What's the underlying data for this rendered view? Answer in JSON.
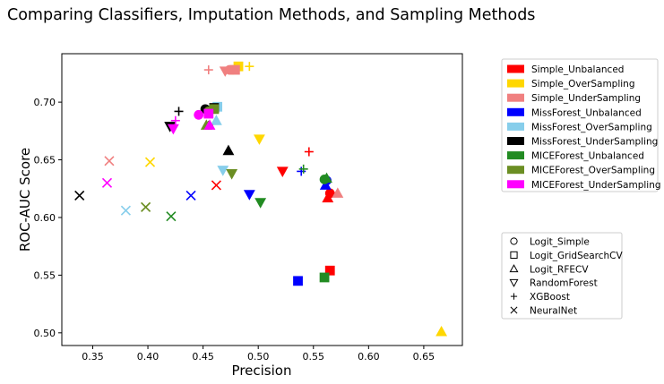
{
  "chart_data": {
    "type": "scatter",
    "title": "Comparing Classifiers, Imputation Methods, and Sampling Methods",
    "xlabel": "Precision",
    "ylabel": "ROC-AUC Score",
    "xlim": [
      0.322,
      0.685
    ],
    "ylim": [
      0.489,
      0.742
    ],
    "xticks": [
      0.35,
      0.4,
      0.45,
      0.5,
      0.55,
      0.6,
      0.65
    ],
    "xtick_labels": [
      "0.35",
      "0.40",
      "0.45",
      "0.50",
      "0.55",
      "0.60",
      "0.65"
    ],
    "yticks": [
      0.5,
      0.55,
      0.6,
      0.65,
      0.7
    ],
    "ytick_labels": [
      "0.50",
      "0.55",
      "0.60",
      "0.65",
      "0.70"
    ],
    "grid": false,
    "legend_placement": "right",
    "methods": [
      {
        "name": "Simple_Unbalanced",
        "color": "#ff0000"
      },
      {
        "name": "Simple_OverSampling",
        "color": "#ffd700"
      },
      {
        "name": "Simple_UnderSampling",
        "color": "#f08080"
      },
      {
        "name": "MissForest_Unbalanced",
        "color": "#0000ff"
      },
      {
        "name": "MissForest_OverSampling",
        "color": "#87ceeb"
      },
      {
        "name": "MissForest_UnderSampling",
        "color": "#000000"
      },
      {
        "name": "MICEForest_Unbalanced",
        "color": "#228b22"
      },
      {
        "name": "MICEForest_OverSampling",
        "color": "#6b8e23"
      },
      {
        "name": "MICEForest_UnderSampling",
        "color": "#ff00ff"
      }
    ],
    "classifiers": [
      {
        "name": "Logit_Simple",
        "marker": "circle"
      },
      {
        "name": "Logit_GridSearchCV",
        "marker": "square"
      },
      {
        "name": "Logit_RFECV",
        "marker": "triangle-up"
      },
      {
        "name": "RandomForest",
        "marker": "triangle-down"
      },
      {
        "name": "XGBoost",
        "marker": "plus"
      },
      {
        "name": "NeuralNet",
        "marker": "x"
      }
    ],
    "points": [
      {
        "method": 0,
        "classifier": 0,
        "x": 0.565,
        "y": 0.621
      },
      {
        "method": 0,
        "classifier": 1,
        "x": 0.565,
        "y": 0.554
      },
      {
        "method": 0,
        "classifier": 2,
        "x": 0.563,
        "y": 0.617
      },
      {
        "method": 0,
        "classifier": 3,
        "x": 0.522,
        "y": 0.64
      },
      {
        "method": 0,
        "classifier": 4,
        "x": 0.546,
        "y": 0.657
      },
      {
        "method": 0,
        "classifier": 5,
        "x": 0.462,
        "y": 0.628
      },
      {
        "method": 1,
        "classifier": 0,
        "x": 0.477,
        "y": 0.728
      },
      {
        "method": 1,
        "classifier": 1,
        "x": 0.482,
        "y": 0.731
      },
      {
        "method": 1,
        "classifier": 2,
        "x": 0.666,
        "y": 0.501
      },
      {
        "method": 1,
        "classifier": 3,
        "x": 0.501,
        "y": 0.668
      },
      {
        "method": 1,
        "classifier": 4,
        "x": 0.492,
        "y": 0.731
      },
      {
        "method": 1,
        "classifier": 5,
        "x": 0.402,
        "y": 0.648
      },
      {
        "method": 2,
        "classifier": 0,
        "x": 0.474,
        "y": 0.728
      },
      {
        "method": 2,
        "classifier": 1,
        "x": 0.479,
        "y": 0.728
      },
      {
        "method": 2,
        "classifier": 2,
        "x": 0.572,
        "y": 0.621
      },
      {
        "method": 2,
        "classifier": 3,
        "x": 0.47,
        "y": 0.727
      },
      {
        "method": 2,
        "classifier": 4,
        "x": 0.455,
        "y": 0.728
      },
      {
        "method": 2,
        "classifier": 5,
        "x": 0.365,
        "y": 0.649
      },
      {
        "method": 3,
        "classifier": 0,
        "x": 0.562,
        "y": 0.632
      },
      {
        "method": 3,
        "classifier": 1,
        "x": 0.536,
        "y": 0.545
      },
      {
        "method": 3,
        "classifier": 2,
        "x": 0.561,
        "y": 0.628
      },
      {
        "method": 3,
        "classifier": 3,
        "x": 0.492,
        "y": 0.62
      },
      {
        "method": 3,
        "classifier": 4,
        "x": 0.539,
        "y": 0.64
      },
      {
        "method": 3,
        "classifier": 5,
        "x": 0.439,
        "y": 0.619
      },
      {
        "method": 4,
        "classifier": 0,
        "x": 0.458,
        "y": 0.694
      },
      {
        "method": 4,
        "classifier": 1,
        "x": 0.463,
        "y": 0.696
      },
      {
        "method": 4,
        "classifier": 2,
        "x": 0.462,
        "y": 0.684
      },
      {
        "method": 4,
        "classifier": 3,
        "x": 0.468,
        "y": 0.641
      },
      {
        "method": 4,
        "classifier": 4,
        "x": 0.455,
        "y": 0.691
      },
      {
        "method": 4,
        "classifier": 5,
        "x": 0.38,
        "y": 0.606
      },
      {
        "method": 5,
        "classifier": 0,
        "x": 0.452,
        "y": 0.694
      },
      {
        "method": 5,
        "classifier": 1,
        "x": 0.46,
        "y": 0.695
      },
      {
        "method": 5,
        "classifier": 2,
        "x": 0.473,
        "y": 0.658
      },
      {
        "method": 5,
        "classifier": 3,
        "x": 0.42,
        "y": 0.679
      },
      {
        "method": 5,
        "classifier": 4,
        "x": 0.428,
        "y": 0.692
      },
      {
        "method": 5,
        "classifier": 5,
        "x": 0.338,
        "y": 0.619
      },
      {
        "method": 6,
        "classifier": 0,
        "x": 0.56,
        "y": 0.633
      },
      {
        "method": 6,
        "classifier": 1,
        "x": 0.56,
        "y": 0.548
      },
      {
        "method": 6,
        "classifier": 2,
        "x": 0.562,
        "y": 0.634
      },
      {
        "method": 6,
        "classifier": 3,
        "x": 0.502,
        "y": 0.613
      },
      {
        "method": 6,
        "classifier": 4,
        "x": 0.541,
        "y": 0.642
      },
      {
        "method": 6,
        "classifier": 5,
        "x": 0.421,
        "y": 0.601
      },
      {
        "method": 7,
        "classifier": 0,
        "x": 0.455,
        "y": 0.692
      },
      {
        "method": 7,
        "classifier": 1,
        "x": 0.46,
        "y": 0.694
      },
      {
        "method": 7,
        "classifier": 2,
        "x": 0.453,
        "y": 0.68
      },
      {
        "method": 7,
        "classifier": 3,
        "x": 0.476,
        "y": 0.638
      },
      {
        "method": 7,
        "classifier": 4,
        "x": 0.455,
        "y": 0.68
      },
      {
        "method": 7,
        "classifier": 5,
        "x": 0.398,
        "y": 0.609
      },
      {
        "method": 8,
        "classifier": 0,
        "x": 0.446,
        "y": 0.689
      },
      {
        "method": 8,
        "classifier": 1,
        "x": 0.455,
        "y": 0.69
      },
      {
        "method": 8,
        "classifier": 2,
        "x": 0.456,
        "y": 0.68
      },
      {
        "method": 8,
        "classifier": 3,
        "x": 0.423,
        "y": 0.677
      },
      {
        "method": 8,
        "classifier": 4,
        "x": 0.425,
        "y": 0.684
      },
      {
        "method": 8,
        "classifier": 5,
        "x": 0.363,
        "y": 0.63
      }
    ]
  }
}
